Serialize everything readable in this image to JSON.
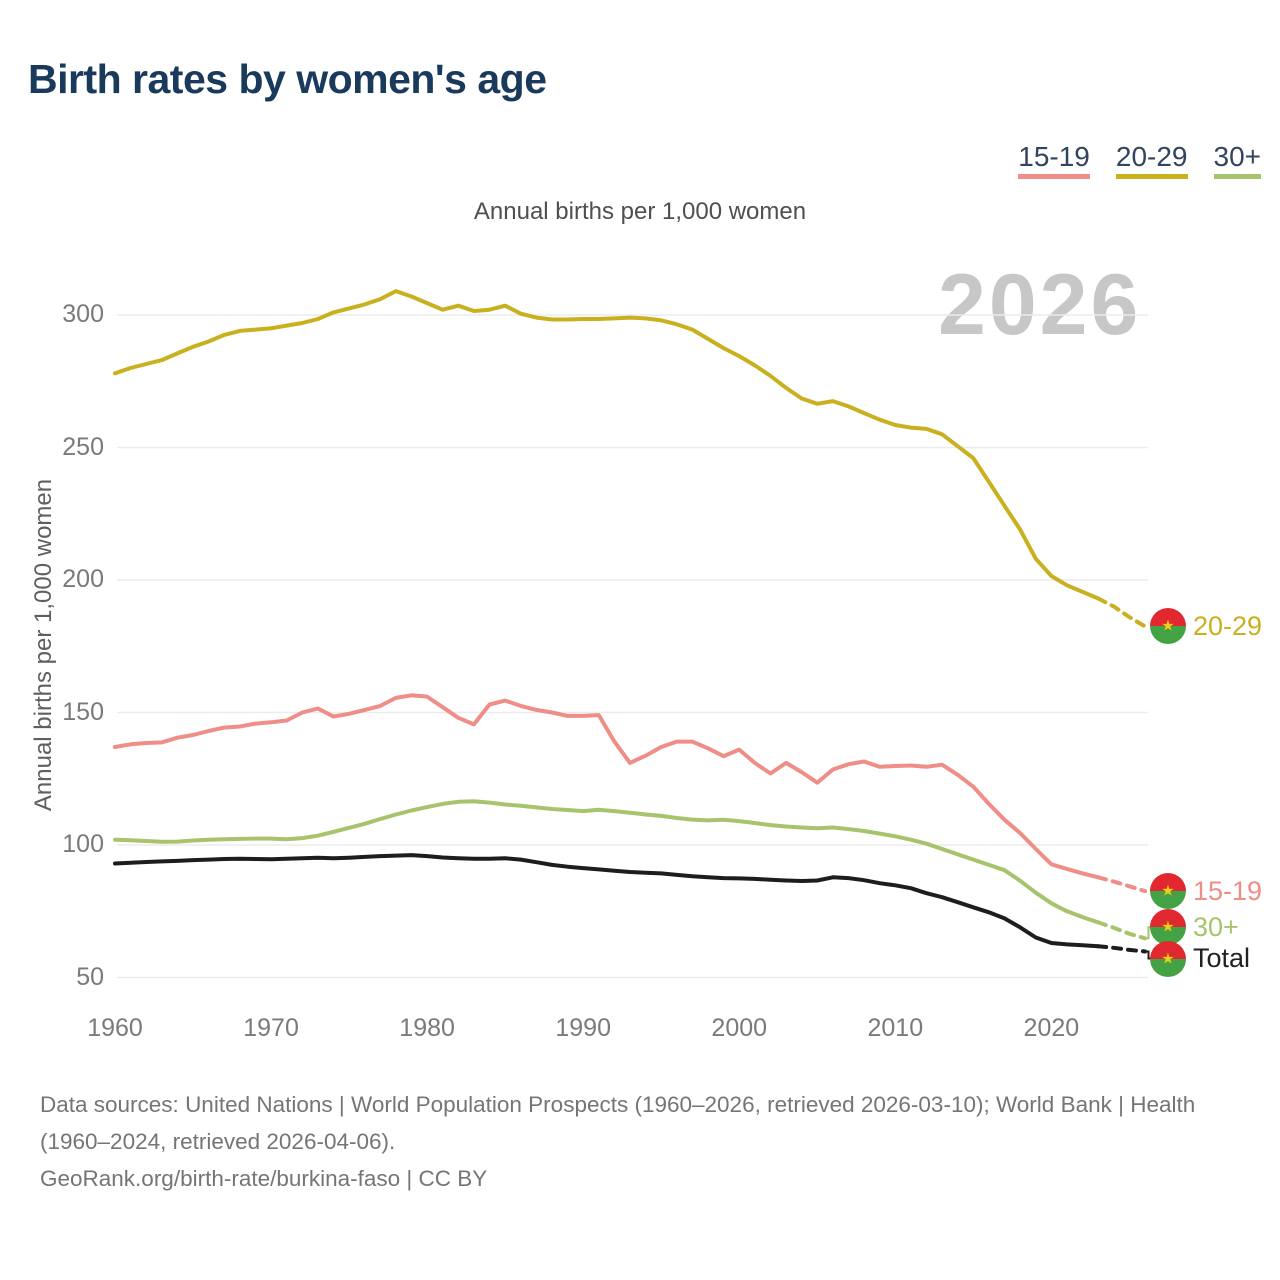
{
  "title": "Birth rates by women's age",
  "subtitle": "Annual births per 1,000 women",
  "y_axis_title": "Annual births per 1,000 women",
  "watermark": "2026",
  "legend": {
    "items": [
      {
        "label": "15-19",
        "color": "#ef8d87"
      },
      {
        "label": "20-29",
        "color": "#c8b01f"
      },
      {
        "label": "30+",
        "color": "#a7c36c"
      }
    ]
  },
  "footer": {
    "sources": "Data sources: United Nations | World Population Prospects (1960–2026, retrieved 2026-03-10); World Bank | Health (1960–2024, retrieved 2026-04-06).",
    "attribution": "GeoRank.org/birth-rate/burkina-faso | CC BY"
  },
  "colors": {
    "title": "#1a3a5c",
    "legend_text": "#32455c",
    "axis_text": "#7a7a7a",
    "subtitle_text": "#4f4f4f",
    "footer_text": "#757575",
    "watermark": "#c7c7c7",
    "gridline": "#ececec",
    "flag_red": "#e0282e",
    "flag_green": "#43a244",
    "flag_star": "#f2ce1b"
  },
  "chart_data": {
    "type": "line",
    "title": "Birth rates by women's age",
    "subtitle": "Annual births per 1,000 women",
    "ylabel": "Annual births per 1,000 women",
    "xlabel": "",
    "grid": "horizontal",
    "legend_position": "top-right",
    "ylim": [
      45,
      315
    ],
    "y_ticks": [
      50,
      100,
      150,
      200,
      250,
      300
    ],
    "x_ticks": [
      1960,
      1970,
      1980,
      1990,
      2000,
      2010,
      2020
    ],
    "projection_dash_from": 2023,
    "flag_icon": "burkina-faso-flag",
    "x": [
      1960,
      1961,
      1962,
      1963,
      1964,
      1965,
      1966,
      1967,
      1968,
      1969,
      1970,
      1971,
      1972,
      1973,
      1974,
      1975,
      1976,
      1977,
      1978,
      1979,
      1980,
      1981,
      1982,
      1983,
      1984,
      1985,
      1986,
      1987,
      1988,
      1989,
      1990,
      1991,
      1992,
      1993,
      1994,
      1995,
      1996,
      1997,
      1998,
      1999,
      2000,
      2001,
      2002,
      2003,
      2004,
      2005,
      2006,
      2007,
      2008,
      2009,
      2010,
      2011,
      2012,
      2013,
      2014,
      2015,
      2016,
      2017,
      2018,
      2019,
      2020,
      2021,
      2022,
      2023,
      2024,
      2025,
      2026
    ],
    "series": [
      {
        "name": "15-19",
        "color": "#ef8d87",
        "label_color": "#ef8d87",
        "values": [
          137,
          138,
          138.5,
          138.7,
          140.5,
          141.5,
          143,
          144.3,
          144.7,
          145.8,
          146.3,
          147,
          150,
          151.5,
          148.5,
          149.5,
          151,
          152.5,
          155.5,
          156.5,
          156,
          152,
          148,
          145.5,
          153,
          154.5,
          152.5,
          151,
          150,
          148.7,
          148.7,
          149,
          139,
          131,
          133.7,
          137,
          139,
          139,
          136.5,
          133.5,
          136,
          131,
          127,
          131,
          127.5,
          123.5,
          128.5,
          130.5,
          131.5,
          129.5,
          129.8,
          130,
          129.5,
          130.3,
          126.5,
          122,
          115.5,
          109.5,
          104.5,
          98.5,
          92.7,
          91,
          89.3,
          87.8,
          86.2,
          84.4,
          82.6
        ]
      },
      {
        "name": "20-29",
        "color": "#c8b01f",
        "label_color": "#c8b01f",
        "values": [
          278,
          280,
          281.5,
          283,
          285.5,
          288,
          290,
          292.5,
          294,
          294.5,
          295,
          296,
          297,
          298.5,
          301,
          302.5,
          304,
          306,
          309,
          307,
          304.5,
          302,
          303.5,
          301.5,
          302,
          303.5,
          300.5,
          299,
          298.3,
          298.3,
          298.5,
          298.5,
          298.7,
          299,
          298.7,
          298,
          296.5,
          294.5,
          291,
          287.5,
          284.5,
          281,
          277,
          272.5,
          268.5,
          266.5,
          267.5,
          265.5,
          263,
          260.5,
          258.5,
          257.5,
          257,
          255,
          250.5,
          246,
          237,
          228,
          219,
          208,
          201.5,
          198,
          195.5,
          193,
          190,
          186,
          182.5
        ]
      },
      {
        "name": "30+",
        "color": "#a7c36c",
        "label_color": "#a7c36c",
        "values": [
          102,
          101.8,
          101.5,
          101.2,
          101.3,
          101.7,
          102,
          102.2,
          102.3,
          102.4,
          102.4,
          102.2,
          102.6,
          103.5,
          105,
          106.5,
          108,
          109.8,
          111.5,
          113,
          114.3,
          115.5,
          116.3,
          116.5,
          116,
          115.3,
          114.8,
          114.2,
          113.6,
          113.2,
          112.8,
          113.3,
          112.8,
          112.2,
          111.5,
          111,
          110.2,
          109.6,
          109.3,
          109.5,
          109,
          108.3,
          107.5,
          107,
          106.6,
          106.3,
          106.6,
          106,
          105.3,
          104.3,
          103.3,
          102,
          100.5,
          98.5,
          96.5,
          94.5,
          92.5,
          90.5,
          86.5,
          82,
          78,
          75,
          72.8,
          70.8,
          68.8,
          66.5,
          64.8
        ]
      },
      {
        "name": "Total",
        "color": "#1d1d1d",
        "label_color": "#222222",
        "values": [
          93,
          93.3,
          93.6,
          93.8,
          94,
          94.3,
          94.5,
          94.7,
          94.8,
          94.7,
          94.6,
          94.8,
          95,
          95.2,
          95,
          95.2,
          95.5,
          95.8,
          96,
          96.2,
          95.8,
          95.3,
          95,
          94.8,
          94.8,
          95,
          94.5,
          93.5,
          92.5,
          91.8,
          91.3,
          90.8,
          90.3,
          89.8,
          89.5,
          89.3,
          88.7,
          88.2,
          87.8,
          87.5,
          87.4,
          87.2,
          86.9,
          86.6,
          86.4,
          86.6,
          87.8,
          87.5,
          86.7,
          85.6,
          84.8,
          83.7,
          81.8,
          80.3,
          78.4,
          76.5,
          74.6,
          72.3,
          68.9,
          65.1,
          63,
          62.5,
          62.2,
          61.8,
          61.2,
          60.4,
          59.8
        ]
      }
    ]
  }
}
